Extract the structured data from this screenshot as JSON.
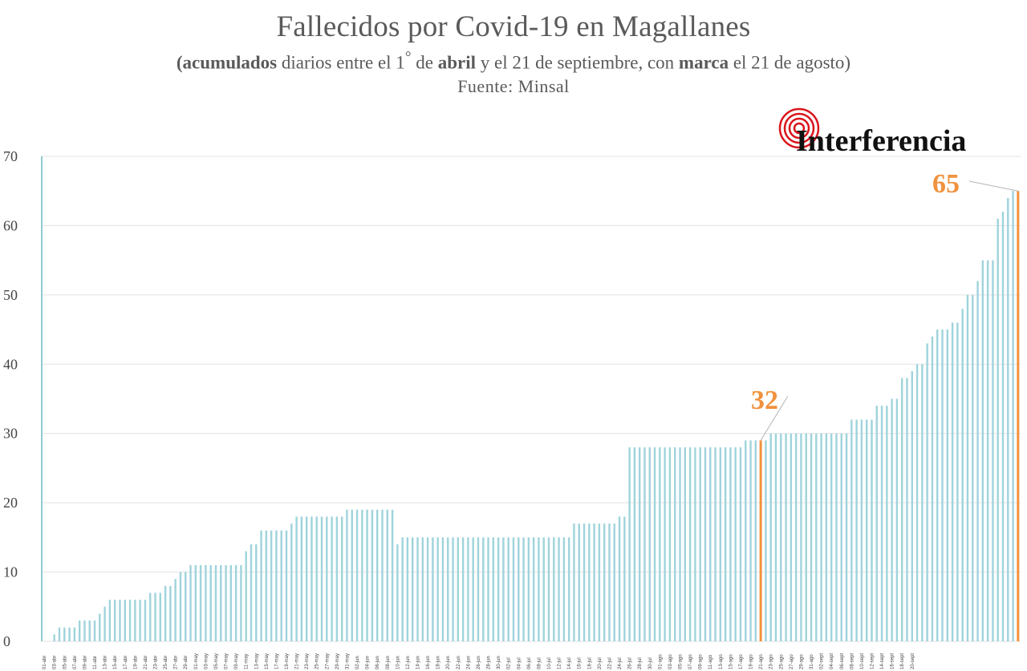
{
  "header": {
    "title": "Fallecidos por Covid-19 en Magallanes",
    "subtitle_part1": "(acumulados",
    "subtitle_part2": " diarios entre el 1",
    "subtitle_deg": "°",
    "subtitle_part3": " de ",
    "subtitle_part4": "abril",
    "subtitle_part5": " y el 21 de septiembre, con ",
    "subtitle_part6": "marca",
    "subtitle_part7": " el 21 de agosto)",
    "source": "Fuente: Minsal"
  },
  "logo": {
    "text": "Interferencia",
    "color": "#d9141b"
  },
  "colors": {
    "bar": "#9fd3dc",
    "highlight": "#f0923e",
    "grid": "#e2e2e2",
    "axis": "#8fcbd4"
  },
  "chart_data": {
    "type": "bar",
    "start_date": "2020-04-01",
    "ylim": [
      0,
      70
    ],
    "yticks": [
      0,
      10,
      20,
      30,
      40,
      50,
      60,
      70
    ],
    "values": [
      0,
      0,
      1,
      2,
      2,
      2,
      2,
      3,
      3,
      3,
      3,
      4,
      5,
      6,
      6,
      6,
      6,
      6,
      6,
      6,
      6,
      7,
      7,
      7,
      8,
      8,
      9,
      10,
      10,
      11,
      11,
      11,
      11,
      11,
      11,
      11,
      11,
      11,
      11,
      11,
      13,
      14,
      14,
      16,
      16,
      16,
      16,
      16,
      16,
      17,
      18,
      18,
      18,
      18,
      18,
      18,
      18,
      18,
      18,
      18,
      19,
      19,
      19,
      19,
      19,
      19,
      19,
      19,
      19,
      19,
      14,
      15,
      15,
      15,
      15,
      15,
      15,
      15,
      15,
      15,
      15,
      15,
      15,
      15,
      15,
      15,
      15,
      15,
      15,
      15,
      15,
      15,
      15,
      15,
      15,
      15,
      15,
      15,
      15,
      15,
      15,
      15,
      15,
      15,
      15,
      17,
      17,
      17,
      17,
      17,
      17,
      17,
      17,
      17,
      18,
      18,
      28,
      28,
      28,
      28,
      28,
      28,
      28,
      28,
      28,
      28,
      28,
      28,
      28,
      28,
      28,
      28,
      28,
      28,
      28,
      28,
      28,
      28,
      28,
      29,
      29,
      29,
      29,
      29,
      30,
      30,
      30,
      30,
      30,
      30,
      30,
      30,
      30,
      30,
      30,
      30,
      30,
      30,
      30,
      30,
      32,
      32,
      32,
      32,
      32,
      34,
      34,
      34,
      35,
      35,
      38,
      38,
      39,
      40,
      40,
      43,
      44,
      45,
      45,
      45,
      46,
      46,
      48,
      50,
      50,
      52,
      55,
      55,
      55,
      61,
      62,
      64,
      65,
      65
    ],
    "highlights": [
      {
        "label": "21 de agosto",
        "value": 32
      },
      {
        "label": "21 de septiembre",
        "value": 65
      }
    ],
    "callouts": [
      "32",
      "65"
    ],
    "xtick_labels": [
      "01-abr",
      "03-abr",
      "05-abr",
      "07-abr",
      "09-abr",
      "11-abr",
      "13-abr",
      "15-abr",
      "17-abr",
      "19-abr",
      "21-abr",
      "23-abr",
      "25-abr",
      "27-abr",
      "29-abr",
      "01-may",
      "03-may",
      "05-may",
      "07-may",
      "09-may",
      "11-may",
      "13-may",
      "15-may",
      "17-may",
      "19-may",
      "21-may",
      "23-may",
      "25-may",
      "27-may",
      "29-may",
      "31-may",
      "02-jun",
      "04-jun",
      "06-jun",
      "08-jun",
      "10-jun",
      "12-jun",
      "14-jun",
      "16-jun",
      "18-jun",
      "20-jun",
      "22-jun",
      "24-jun",
      "26-jun",
      "28-jun",
      "30-jun",
      "02-jul",
      "04-jul",
      "06-jul",
      "08-jul",
      "10-jul",
      "12-jul",
      "14-jul",
      "16-jul",
      "18-jul",
      "20-jul",
      "22-jul",
      "24-jul",
      "26-jul",
      "28-jul",
      "30-jul",
      "01-ago",
      "03-ago",
      "05-ago",
      "07-ago",
      "09-ago",
      "11-ago",
      "13-ago",
      "15-ago",
      "17-ago",
      "19-ago",
      "21-ago",
      "23-ago",
      "25-ago",
      "27-ago",
      "29-ago",
      "31-ago",
      "02-sept",
      "04-sept",
      "06-sept",
      "08-sept",
      "10-sept",
      "12-sept",
      "14-sept",
      "16-sept",
      "18-sept",
      "20-sept"
    ],
    "grid": true,
    "legend": "none"
  }
}
